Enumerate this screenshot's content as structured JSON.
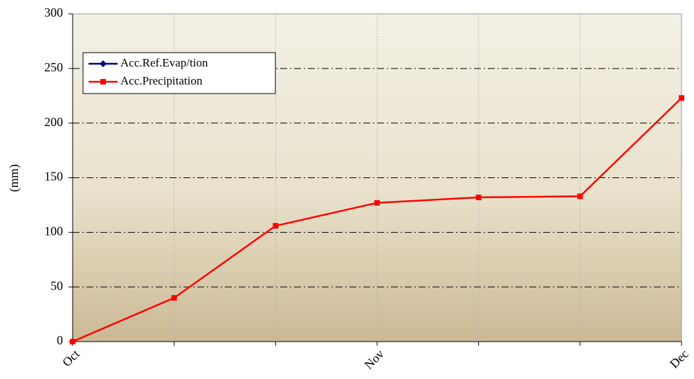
{
  "chart_data": {
    "type": "line",
    "y_label": "(mm)",
    "categories": [
      "Oct",
      null,
      null,
      "Nov",
      null,
      null,
      "Dec"
    ],
    "series": [
      {
        "name": "Acc.Ref.Evap/tion",
        "color": "#000080",
        "marker": "diamond",
        "values": [
          null,
          null,
          null,
          null,
          null,
          null,
          null
        ]
      },
      {
        "name": "Acc.Precipitation",
        "color": "#ff0000",
        "marker": "square",
        "values": [
          0,
          40,
          106,
          127,
          132,
          133,
          223
        ]
      }
    ],
    "ylim": [
      0,
      300
    ],
    "yticks": [
      0,
      50,
      100,
      150,
      200,
      250,
      300
    ],
    "grid": true,
    "legend": "upper left"
  }
}
